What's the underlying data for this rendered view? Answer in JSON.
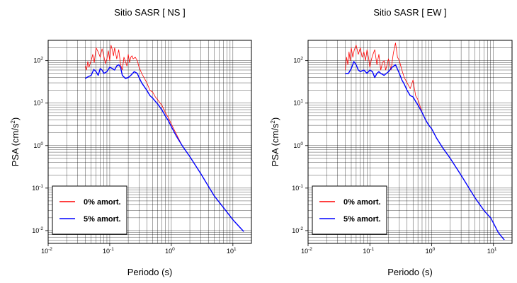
{
  "chart_data": [
    {
      "type": "line",
      "title": "Sitio SASR [ NS ]",
      "xlabel": "Periodo (s)",
      "ylabel": "PSA (cm/s²)",
      "ylabel_main": "PSA (cm/s",
      "ylabel_sup": "2",
      "ylabel_tail": ")",
      "x_scale": "log",
      "y_scale": "log",
      "xlim": [
        0.01,
        20
      ],
      "ylim": [
        0.005,
        300
      ],
      "grid": true,
      "legend_position": "bottom-left",
      "x_ticks": [
        {
          "base": "10",
          "exp": "-2"
        },
        {
          "base": "10",
          "exp": "-1"
        },
        {
          "base": "10",
          "exp": "0"
        },
        {
          "base": "10",
          "exp": "1"
        }
      ],
      "y_ticks": [
        {
          "base": "10",
          "exp": "-2"
        },
        {
          "base": "10",
          "exp": "-1"
        },
        {
          "base": "10",
          "exp": "0"
        },
        {
          "base": "10",
          "exp": "1"
        },
        {
          "base": "10",
          "exp": "2"
        }
      ],
      "series": [
        {
          "name": "0% amort.",
          "color": "#ff0000",
          "x": [
            0.04,
            0.042,
            0.044,
            0.046,
            0.048,
            0.05,
            0.053,
            0.056,
            0.06,
            0.065,
            0.07,
            0.075,
            0.08,
            0.085,
            0.09,
            0.095,
            0.1,
            0.105,
            0.11,
            0.115,
            0.12,
            0.13,
            0.14,
            0.15,
            0.16,
            0.17,
            0.18,
            0.19,
            0.2,
            0.21,
            0.22,
            0.23,
            0.24,
            0.26,
            0.28,
            0.3,
            0.33,
            0.36,
            0.4,
            0.45,
            0.5,
            0.55,
            0.6,
            0.7,
            0.8,
            0.9,
            1.0,
            1.2,
            1.5,
            2.0,
            3.0,
            5.0,
            7.0,
            10.0,
            15.0
          ],
          "y": [
            75,
            60,
            95,
            70,
            85,
            100,
            140,
            90,
            200,
            160,
            120,
            190,
            130,
            85,
            110,
            170,
            100,
            230,
            180,
            130,
            200,
            110,
            180,
            80,
            60,
            120,
            95,
            75,
            140,
            90,
            120,
            130,
            110,
            120,
            100,
            70,
            50,
            40,
            30,
            20,
            18,
            14,
            12,
            9,
            6,
            4.5,
            3.2,
            1.9,
            1.0,
            0.55,
            0.22,
            0.065,
            0.035,
            0.018,
            0.0095
          ]
        },
        {
          "name": "5% amort.",
          "color": "#0000ff",
          "x": [
            0.04,
            0.045,
            0.05,
            0.055,
            0.06,
            0.065,
            0.07,
            0.075,
            0.08,
            0.09,
            0.1,
            0.11,
            0.12,
            0.13,
            0.14,
            0.15,
            0.16,
            0.18,
            0.2,
            0.22,
            0.25,
            0.28,
            0.3,
            0.33,
            0.36,
            0.4,
            0.45,
            0.5,
            0.55,
            0.6,
            0.7,
            0.8,
            0.9,
            1.0,
            1.2,
            1.5,
            2.0,
            3.0,
            5.0,
            7.0,
            10.0,
            15.0
          ],
          "y": [
            38,
            42,
            45,
            62,
            55,
            45,
            65,
            60,
            50,
            55,
            70,
            65,
            60,
            75,
            80,
            70,
            45,
            38,
            40,
            45,
            55,
            50,
            40,
            30,
            25,
            20,
            15,
            13,
            11,
            9.5,
            7,
            5,
            3.8,
            2.8,
            1.7,
            1.0,
            0.55,
            0.22,
            0.065,
            0.035,
            0.018,
            0.0095
          ]
        }
      ]
    },
    {
      "type": "line",
      "title": "Sitio SASR [ EW ]",
      "xlabel": "Periodo (s)",
      "ylabel": "PSA (cm/s²)",
      "ylabel_main": "PSA (cm/s",
      "ylabel_sup": "2",
      "ylabel_tail": ")",
      "x_scale": "log",
      "y_scale": "log",
      "xlim": [
        0.01,
        20
      ],
      "ylim": [
        0.005,
        300
      ],
      "grid": true,
      "legend_position": "bottom-left",
      "x_ticks": [
        {
          "base": "10",
          "exp": "-2"
        },
        {
          "base": "10",
          "exp": "-1"
        },
        {
          "base": "10",
          "exp": "0"
        },
        {
          "base": "10",
          "exp": "1"
        }
      ],
      "y_ticks": [
        {
          "base": "10",
          "exp": "-2"
        },
        {
          "base": "10",
          "exp": "-1"
        },
        {
          "base": "10",
          "exp": "0"
        },
        {
          "base": "10",
          "exp": "1"
        },
        {
          "base": "10",
          "exp": "2"
        }
      ],
      "series": [
        {
          "name": "0% amort.",
          "color": "#ff0000",
          "x": [
            0.04,
            0.042,
            0.044,
            0.046,
            0.048,
            0.05,
            0.053,
            0.056,
            0.06,
            0.065,
            0.07,
            0.075,
            0.08,
            0.085,
            0.09,
            0.095,
            0.1,
            0.105,
            0.11,
            0.12,
            0.13,
            0.14,
            0.15,
            0.16,
            0.17,
            0.18,
            0.19,
            0.2,
            0.22,
            0.24,
            0.26,
            0.28,
            0.3,
            0.33,
            0.36,
            0.4,
            0.45,
            0.5,
            0.55,
            0.6,
            0.7,
            0.8,
            0.9,
            1.0,
            1.2,
            1.5,
            2.0,
            3.0,
            5.0,
            7.0,
            8.0,
            9.0,
            10.0,
            12.0,
            15.0
          ],
          "y": [
            60,
            120,
            80,
            160,
            100,
            200,
            120,
            180,
            230,
            140,
            200,
            120,
            160,
            100,
            180,
            120,
            70,
            100,
            130,
            180,
            80,
            140,
            60,
            90,
            100,
            60,
            80,
            110,
            60,
            150,
            260,
            120,
            100,
            60,
            40,
            30,
            22,
            35,
            15,
            12,
            6,
            4,
            3,
            2.5,
            1.5,
            0.9,
            0.5,
            0.2,
            0.06,
            0.03,
            0.024,
            0.02,
            0.015,
            0.009,
            0.006
          ]
        },
        {
          "name": "5% amort.",
          "color": "#0000ff",
          "x": [
            0.04,
            0.045,
            0.05,
            0.055,
            0.06,
            0.065,
            0.07,
            0.08,
            0.09,
            0.1,
            0.11,
            0.12,
            0.13,
            0.14,
            0.15,
            0.17,
            0.2,
            0.23,
            0.26,
            0.3,
            0.33,
            0.36,
            0.4,
            0.45,
            0.5,
            0.55,
            0.6,
            0.7,
            0.8,
            0.9,
            1.0,
            1.2,
            1.5,
            2.0,
            3.0,
            5.0,
            7.0,
            8.0,
            9.0,
            10.0,
            12.0,
            15.0
          ],
          "y": [
            50,
            50,
            65,
            95,
            80,
            60,
            55,
            60,
            50,
            60,
            55,
            40,
            50,
            55,
            50,
            45,
            55,
            70,
            80,
            50,
            35,
            28,
            20,
            15,
            14,
            11,
            9,
            6,
            4,
            3,
            2.5,
            1.5,
            0.9,
            0.5,
            0.2,
            0.06,
            0.03,
            0.024,
            0.02,
            0.015,
            0.009,
            0.006
          ]
        }
      ]
    }
  ]
}
